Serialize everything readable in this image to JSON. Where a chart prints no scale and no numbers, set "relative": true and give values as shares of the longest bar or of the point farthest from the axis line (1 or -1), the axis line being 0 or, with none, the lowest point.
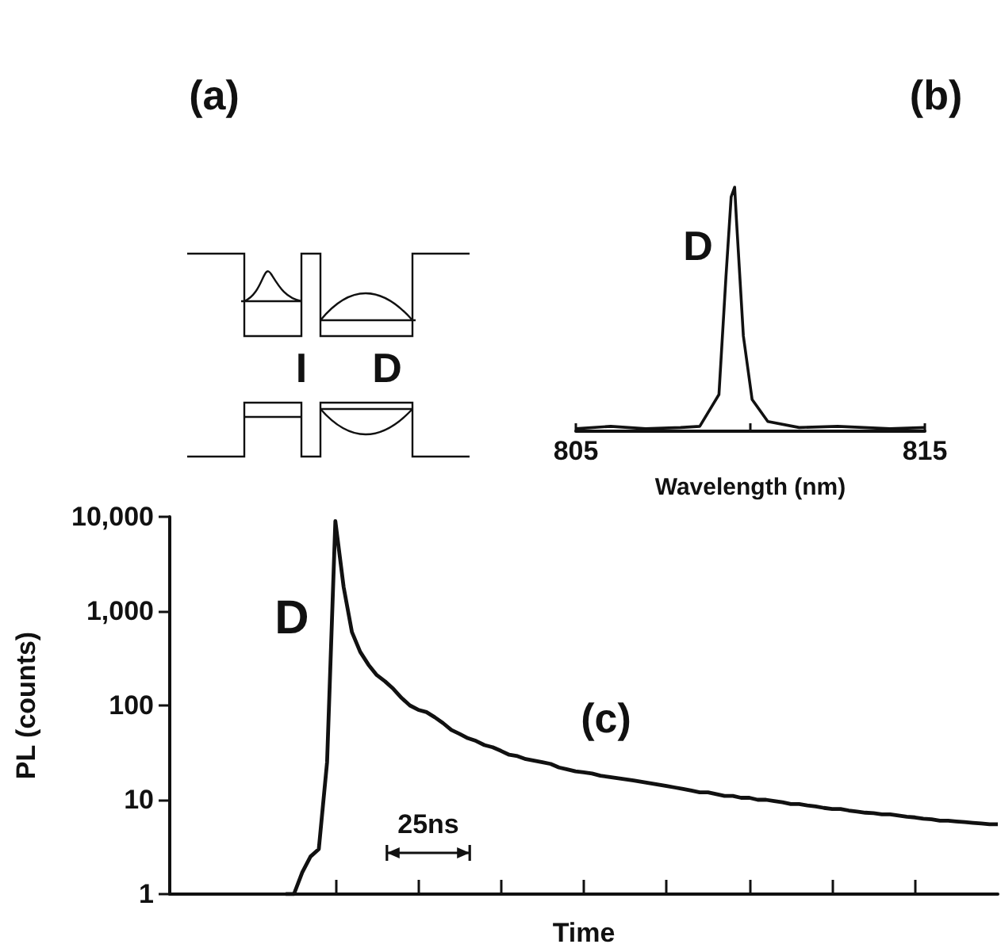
{
  "chart_data": [
    {
      "type": "line",
      "xlabel": "Time",
      "ylabel": "PL (counts)",
      "annotations": [
        "D",
        "(c)",
        "25ns"
      ],
      "log": "y",
      "tick_labels": "y",
      "marker": "none",
      "categories": [
        null,
        null,
        null,
        null,
        null,
        null,
        null,
        null,
        null,
        null,
        null,
        null,
        null,
        null,
        null,
        null,
        null,
        null,
        null,
        null,
        null,
        null,
        null,
        null,
        null,
        null,
        null,
        null,
        null,
        null,
        null,
        null,
        null,
        null,
        null,
        null,
        null,
        null,
        null,
        null,
        null,
        null,
        null,
        null,
        null,
        null,
        null,
        null,
        null,
        null,
        null,
        null,
        null,
        null,
        null,
        null,
        null,
        null,
        null,
        null,
        null,
        null,
        null,
        null,
        null,
        null,
        null,
        null,
        null,
        null,
        null,
        null,
        null,
        null,
        null,
        null,
        null,
        null,
        null,
        null,
        null,
        null,
        null,
        null,
        null,
        null,
        null,
        null,
        null,
        null,
        null,
        null,
        null,
        null,
        null,
        null,
        null,
        null,
        null,
        null,
        null
      ],
      "series": [
        {
          "color": "#111111",
          "values": [
            null,
            null,
            null,
            null,
            null,
            null,
            null,
            null,
            null,
            null,
            null,
            null,
            null,
            null,
            1,
            1,
            1.7,
            2.5,
            3,
            25,
            9000,
            1800,
            600,
            370,
            270,
            210,
            180,
            150,
            120,
            100,
            90,
            85,
            75,
            65,
            55,
            50,
            45,
            42,
            38,
            36,
            33,
            30,
            29,
            27,
            26,
            25,
            24,
            22,
            21,
            20,
            19.5,
            19,
            18,
            17.5,
            17,
            16.5,
            16,
            15.5,
            15,
            14.5,
            14,
            13.5,
            13,
            12.5,
            12,
            12,
            11.5,
            11,
            11,
            10.5,
            10.5,
            10,
            10,
            9.7,
            9.4,
            9,
            9,
            8.7,
            8.5,
            8.2,
            8,
            8,
            7.7,
            7.5,
            7.3,
            7.2,
            7,
            7,
            6.8,
            6.6,
            6.5,
            6.3,
            6.2,
            6,
            6,
            5.9,
            5.8,
            5.7,
            5.6,
            5.5,
            5.5
          ]
        }
      ],
      "ylim": [
        1,
        10000
      ],
      "yticks": [
        1,
        10,
        100,
        {
          "value": 1000,
          "label": "1,000"
        },
        {
          "value": 10000,
          "label": "10,000"
        }
      ]
    },
    {
      "type": "line",
      "xlabel": "Wavelength (nm)",
      "annotations": [
        "D",
        "(b)"
      ],
      "relative": true,
      "tick_labels": "x",
      "marker": "none",
      "x": [
        805,
        806,
        807,
        808,
        808.55,
        809.1,
        809.3,
        809.45,
        809.55,
        809.6,
        809.8,
        810.05,
        810.5,
        811.4,
        812.5,
        814,
        815
      ],
      "series": [
        {
          "color": "#111111",
          "values": [
            0.01,
            0.02,
            0.01,
            0.015,
            0.02,
            0.15,
            0.63,
            0.96,
            1,
            0.87,
            0.39,
            0.13,
            0.04,
            0.015,
            0.02,
            0.01,
            0.015
          ]
        }
      ],
      "xlim": [
        805,
        815
      ],
      "xticks": [
        805,
        {
          "value": 810,
          "label": null
        },
        815
      ]
    },
    {
      "type": "other",
      "annotations": [
        "(a)",
        "I",
        "D"
      ]
    }
  ]
}
